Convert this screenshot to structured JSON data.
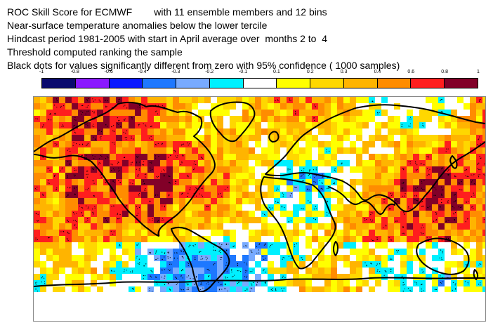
{
  "header": {
    "title_line": "ROC Skill Score for ECMWF        with 11 ensemble members and 12 bins",
    "variable_line": "Near-surface temperature anomalies below the lower tercile",
    "hindcast_line": "Hindcast period 1981-2005 with start in April average over  months 2 to  4",
    "threshold_line": "Threshold computed ranking the sample",
    "significance_line": "Black dots for values significantly different from zero with 95% confidence ( 1000 samples)"
  },
  "colorbar": {
    "ticks": [
      "-1",
      "-0.8",
      "-0.6",
      "-0.4",
      "-0.3",
      "-0.2",
      "-0.1",
      "0.1",
      "0.2",
      "0.3",
      "0.4",
      "0.6",
      "0.8",
      "1"
    ],
    "colors": [
      "#0a0a6e",
      "#8a1aff",
      "#0a1aff",
      "#1e78ff",
      "#78aaff",
      "#00f0ff",
      "#ffffff",
      "#ffff00",
      "#ffd700",
      "#ffb400",
      "#ff8c00",
      "#ff1e1e",
      "#820028"
    ]
  },
  "map": {
    "projection": "global lat-lon",
    "background": "#ffffff",
    "coastline_color": "#000000"
  }
}
